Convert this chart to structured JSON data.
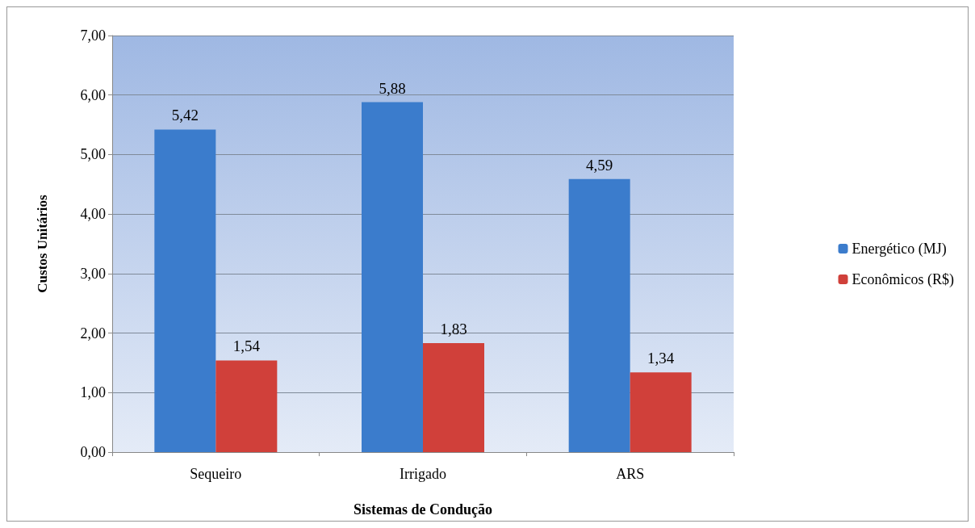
{
  "chart_data": {
    "type": "bar",
    "xlabel": "Sistemas de Condução",
    "ylabel": "Custos Unitários",
    "categories": [
      "Sequeiro",
      "Irrigado",
      "ARS"
    ],
    "series": [
      {
        "name": "Energético (MJ)",
        "color": "#3b7ccc",
        "values": [
          5.42,
          5.88,
          4.59
        ],
        "value_labels": [
          "5,42",
          "5,88",
          "4,59"
        ]
      },
      {
        "name": "Econômicos (R$)",
        "color": "#d0403a",
        "values": [
          1.54,
          1.83,
          1.34
        ],
        "value_labels": [
          "1,54",
          "1,83",
          "1,34"
        ]
      }
    ],
    "ylim": [
      0,
      7
    ],
    "yticks": [
      {
        "value": 0,
        "label": "0,00"
      },
      {
        "value": 1,
        "label": "1,00"
      },
      {
        "value": 2,
        "label": "2,00"
      },
      {
        "value": 3,
        "label": "3,00"
      },
      {
        "value": 4,
        "label": "4,00"
      },
      {
        "value": 5,
        "label": "5,00"
      },
      {
        "value": 6,
        "label": "6,00"
      },
      {
        "value": 7,
        "label": "7,00"
      }
    ],
    "grid": "y",
    "legend": "right"
  }
}
